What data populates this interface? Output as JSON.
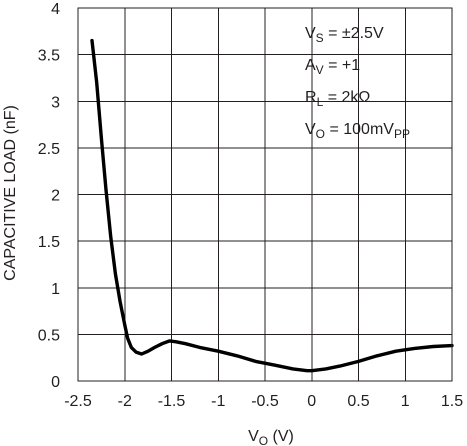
{
  "chart_data": {
    "type": "line",
    "xlabel_main": "V",
    "xlabel_sub": "O",
    "xlabel_unit": " (V)",
    "ylabel": "CAPACITIVE LOAD (nF)",
    "xlim": [
      -2.5,
      1.5
    ],
    "ylim": [
      0,
      4
    ],
    "x_ticks": [
      "-2.5",
      "-2",
      "-1.5",
      "-1",
      "-0.5",
      "0",
      "0.5",
      "1",
      "1.5"
    ],
    "y_ticks": [
      "0",
      "0.5",
      "1",
      "1.5",
      "2",
      "2.5",
      "3",
      "3.5",
      "4"
    ],
    "grid": true,
    "conditions": [
      {
        "main": "V",
        "sub": "S",
        "rest": " = ±2.5V",
        "tail_sub": "",
        "tail": ""
      },
      {
        "main": "A",
        "sub": "V",
        "rest": " = +1",
        "tail_sub": "",
        "tail": ""
      },
      {
        "main": "R",
        "sub": "L",
        "rest": " = 2kΩ",
        "tail_sub": "",
        "tail": ""
      },
      {
        "main": "V",
        "sub": "O",
        "rest": " = 100mV",
        "tail_sub": "PP",
        "tail": ""
      }
    ],
    "series": [
      {
        "color": "#000000",
        "x": [
          -2.35,
          -2.3,
          -2.25,
          -2.2,
          -2.15,
          -2.1,
          -2.05,
          -2.0,
          -1.97,
          -1.93,
          -1.88,
          -1.82,
          -1.75,
          -1.68,
          -1.6,
          -1.52,
          -1.45,
          -1.35,
          -1.2,
          -1.0,
          -0.8,
          -0.6,
          -0.4,
          -0.2,
          -0.05,
          0.0,
          0.15,
          0.3,
          0.5,
          0.7,
          0.9,
          1.1,
          1.3,
          1.5
        ],
        "y": [
          3.65,
          3.2,
          2.6,
          2.05,
          1.55,
          1.15,
          0.85,
          0.6,
          0.46,
          0.36,
          0.31,
          0.29,
          0.32,
          0.36,
          0.4,
          0.43,
          0.42,
          0.4,
          0.36,
          0.32,
          0.27,
          0.21,
          0.17,
          0.13,
          0.11,
          0.11,
          0.13,
          0.16,
          0.21,
          0.27,
          0.32,
          0.35,
          0.37,
          0.38
        ]
      }
    ]
  }
}
